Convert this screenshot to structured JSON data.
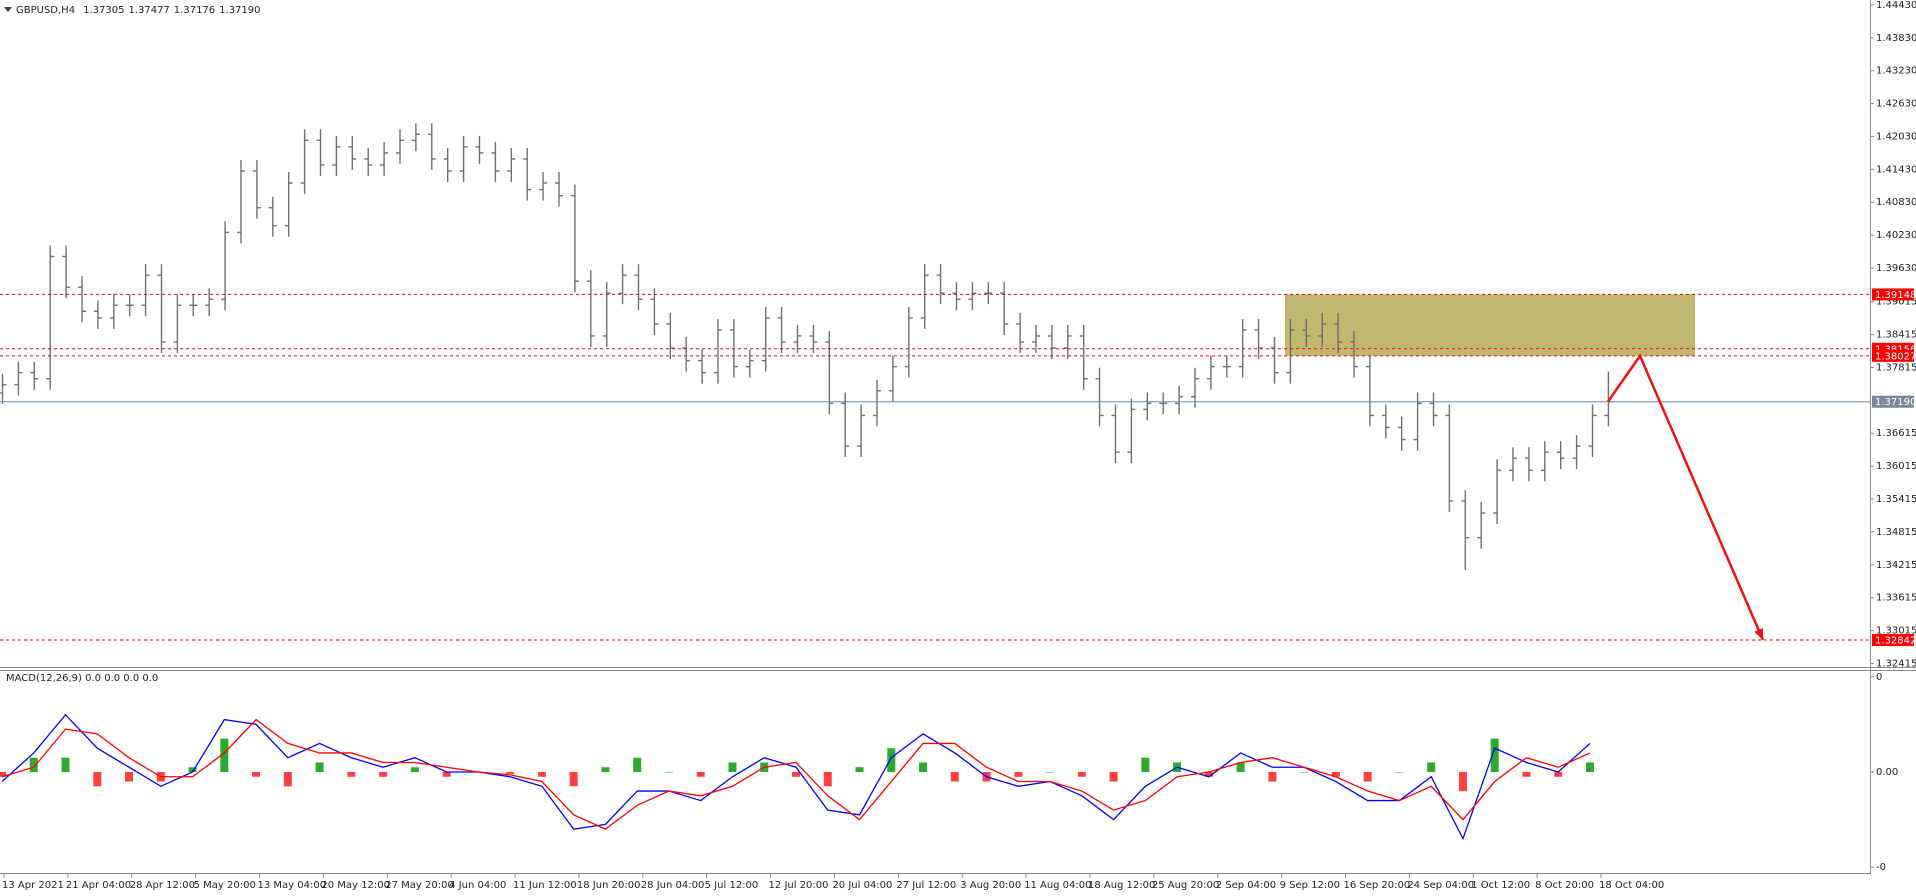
{
  "chart_data": {
    "type": "ohlc",
    "header": {
      "symbol": "GBPUSD,H4",
      "values": [
        "1.37305",
        "1.37477",
        "1.37176",
        "1.37190"
      ]
    },
    "x_labels": [
      "13 Apr 2021",
      "21 Apr 04:00",
      "28 Apr 12:00",
      "5 May 20:00",
      "13 May 04:00",
      "20 May 12:00",
      "27 May 20:00",
      "4 Jun 04:00",
      "11 Jun 12:00",
      "18 Jun 20:00",
      "28 Jun 04:00",
      "5 Jul 12:00",
      "12 Jul 20:00",
      "20 Jul 04:00",
      "27 Jul 12:00",
      "3 Aug 20:00",
      "11 Aug 04:00",
      "18 Aug 12:00",
      "25 Aug 20:00",
      "2 Sep 04:00",
      "9 Sep 12:00",
      "16 Sep 20:00",
      "24 Sep 04:00",
      "1 Oct 12:00",
      "8 Oct 20:00",
      "18 Oct 04:00"
    ],
    "open": [
      1.3735,
      1.375,
      1.3772,
      1.3761,
      1.3984,
      1.3928,
      1.3884,
      1.3872,
      1.3895,
      1.3895,
      1.395,
      1.3828,
      1.3895,
      1.3895,
      1.3906,
      1.4028,
      1.414,
      1.4073,
      1.404,
      1.4118,
      1.4196,
      1.4151,
      1.4184,
      1.4162,
      1.4151,
      1.4173,
      1.4196,
      1.4207,
      1.4162,
      1.414,
      1.4184,
      1.4173,
      1.414,
      1.4162,
      1.4106,
      1.4118,
      1.4095,
      1.3939,
      1.3839,
      1.3917,
      1.395,
      1.3906,
      1.3861,
      1.3817,
      1.3794,
      1.3772,
      1.385,
      1.3783,
      1.3794,
      1.3872,
      1.3828,
      1.3839,
      1.3828,
      1.3716,
      1.3638,
      1.3694,
      1.3739,
      1.3783,
      1.3872,
      1.395,
      1.3917,
      1.3906,
      1.3917,
      1.3917,
      1.3861,
      1.3828,
      1.3839,
      1.3817,
      1.3839,
      1.3761,
      1.3694,
      1.3627,
      1.3705,
      1.3716,
      1.3716,
      1.3728,
      1.3761,
      1.3783,
      1.3783,
      1.385,
      1.3817,
      1.3772,
      1.385,
      1.3839,
      1.3861,
      1.3828,
      1.3783,
      1.3694,
      1.3672,
      1.365,
      1.3716,
      1.3694,
      1.3538,
      1.3471,
      1.3516,
      1.3594,
      1.3616,
      1.3594,
      1.3627,
      1.3616,
      1.3638,
      1.3694
    ],
    "high": [
      1.377,
      1.3792,
      1.3792,
      1.4004,
      1.4004,
      1.3948,
      1.3904,
      1.3915,
      1.3915,
      1.397,
      1.397,
      1.3915,
      1.3915,
      1.3926,
      1.4048,
      1.416,
      1.416,
      1.4093,
      1.4138,
      1.4216,
      1.4216,
      1.4204,
      1.4204,
      1.4182,
      1.4193,
      1.4216,
      1.4227,
      1.4227,
      1.4182,
      1.4204,
      1.4204,
      1.4193,
      1.4182,
      1.4182,
      1.4138,
      1.4138,
      1.4115,
      1.3959,
      1.3937,
      1.397,
      1.397,
      1.3926,
      1.3881,
      1.3837,
      1.3814,
      1.387,
      1.387,
      1.3814,
      1.3892,
      1.3892,
      1.3859,
      1.3859,
      1.3848,
      1.3736,
      1.3714,
      1.3759,
      1.3803,
      1.3892,
      1.397,
      1.397,
      1.3937,
      1.3937,
      1.3937,
      1.3937,
      1.3881,
      1.3859,
      1.3859,
      1.3859,
      1.3859,
      1.3781,
      1.3714,
      1.3725,
      1.3736,
      1.3736,
      1.3748,
      1.3781,
      1.3803,
      1.3803,
      1.387,
      1.387,
      1.3837,
      1.387,
      1.387,
      1.3881,
      1.3881,
      1.3848,
      1.3803,
      1.3714,
      1.3692,
      1.3736,
      1.3736,
      1.3714,
      1.3558,
      1.3536,
      1.3614,
      1.3636,
      1.3636,
      1.3647,
      1.3647,
      1.3658,
      1.3714,
      1.3774
    ],
    "low": [
      1.3715,
      1.373,
      1.3741,
      1.3741,
      1.3908,
      1.3864,
      1.3852,
      1.3852,
      1.3875,
      1.3875,
      1.3808,
      1.3808,
      1.3875,
      1.3875,
      1.3886,
      1.4008,
      1.4053,
      1.402,
      1.402,
      1.4098,
      1.4131,
      1.4131,
      1.4142,
      1.4131,
      1.4131,
      1.4153,
      1.4176,
      1.4142,
      1.412,
      1.412,
      1.4153,
      1.412,
      1.412,
      1.4086,
      1.4086,
      1.4075,
      1.3919,
      1.3819,
      1.3819,
      1.3897,
      1.3886,
      1.3841,
      1.3797,
      1.3774,
      1.3752,
      1.3752,
      1.3763,
      1.3763,
      1.3774,
      1.3808,
      1.3808,
      1.3808,
      1.3696,
      1.3618,
      1.3618,
      1.3674,
      1.3719,
      1.3763,
      1.3852,
      1.3897,
      1.3886,
      1.3886,
      1.3897,
      1.3841,
      1.3808,
      1.3808,
      1.3797,
      1.3797,
      1.3741,
      1.3674,
      1.3607,
      1.3607,
      1.3685,
      1.3696,
      1.3696,
      1.3708,
      1.3741,
      1.3763,
      1.3763,
      1.3797,
      1.3752,
      1.3752,
      1.3819,
      1.3819,
      1.3808,
      1.3763,
      1.3674,
      1.3652,
      1.363,
      1.363,
      1.3674,
      1.3518,
      1.3412,
      1.3451,
      1.3496,
      1.3574,
      1.3574,
      1.3574,
      1.3596,
      1.3596,
      1.3618,
      1.3674
    ],
    "close": [
      1.375,
      1.3772,
      1.3761,
      1.3984,
      1.3928,
      1.3884,
      1.3872,
      1.3895,
      1.3895,
      1.395,
      1.3828,
      1.3895,
      1.3895,
      1.3906,
      1.4028,
      1.414,
      1.4073,
      1.404,
      1.4118,
      1.4196,
      1.4151,
      1.4184,
      1.4162,
      1.4151,
      1.4173,
      1.4196,
      1.4207,
      1.4162,
      1.414,
      1.4184,
      1.4173,
      1.414,
      1.4162,
      1.4106,
      1.4118,
      1.4095,
      1.3939,
      1.3839,
      1.3917,
      1.395,
      1.3906,
      1.3861,
      1.3817,
      1.3794,
      1.3772,
      1.385,
      1.3783,
      1.3794,
      1.3872,
      1.3828,
      1.3839,
      1.3828,
      1.3716,
      1.3638,
      1.3694,
      1.3739,
      1.3783,
      1.3872,
      1.395,
      1.3917,
      1.3906,
      1.3917,
      1.3917,
      1.3861,
      1.3828,
      1.3839,
      1.3817,
      1.3839,
      1.3761,
      1.3694,
      1.3627,
      1.3705,
      1.3716,
      1.3716,
      1.3728,
      1.3761,
      1.3783,
      1.3783,
      1.385,
      1.3817,
      1.3772,
      1.385,
      1.3839,
      1.3861,
      1.3828,
      1.3783,
      1.3694,
      1.3672,
      1.365,
      1.3716,
      1.3694,
      1.3538,
      1.3471,
      1.3516,
      1.3594,
      1.3616,
      1.3594,
      1.3627,
      1.3616,
      1.3638,
      1.3694,
      1.3719
    ],
    "color": "#6f6f6f",
    "ylim": [
      1.3235,
      1.4452
    ],
    "yticks": [
      {
        "value": 1.4443,
        "label": "1.44430"
      },
      {
        "value": 1.4383,
        "label": "1.43830"
      },
      {
        "value": 1.4323,
        "label": "1.43230"
      },
      {
        "value": 1.4263,
        "label": "1.42630"
      },
      {
        "value": 1.4203,
        "label": "1.42030"
      },
      {
        "value": 1.4143,
        "label": "1.41430"
      },
      {
        "value": 1.4083,
        "label": "1.40830"
      },
      {
        "value": 1.4023,
        "label": "1.40230"
      },
      {
        "value": 1.3963,
        "label": "1.39630"
      },
      1.39015,
      1.38415,
      1.37815,
      1.36615,
      1.36015,
      1.35415,
      1.34815,
      1.34215,
      1.33615,
      1.33015,
      1.32415
    ],
    "grid": false,
    "levels": [
      {
        "value": 1.39148,
        "label": "1.39148",
        "color": "#ff0000",
        "style": "dashed"
      },
      {
        "value": 1.38156,
        "label": "1.38156",
        "color": "#ff0000",
        "style": "dashed"
      },
      {
        "value": 1.38027,
        "label": "1.38027",
        "color": "#ff0000",
        "style": "dashed"
      },
      {
        "value": 1.32842,
        "label": "1.32842",
        "color": "#ff0000",
        "style": "dashed"
      },
      {
        "value": 1.3719,
        "label": "1.37190",
        "color": "#778899",
        "style": "solid"
      }
    ],
    "zone": {
      "high": 1.39148,
      "low": 1.38027,
      "color": "#bdb466"
    },
    "arrow_color": "#ee1111",
    "indicator": {
      "type": "macd",
      "title": "MACD(12,26,9) 0.0 0.0 0.0 0.0",
      "ylim": [
        -0.0105,
        0.0105
      ],
      "yticks": [
        {
          "value": 0.01,
          "label": "0"
        },
        {
          "value": 0,
          "label": "0.00"
        },
        {
          "value": -0.01,
          "label": "-0"
        }
      ],
      "macd": {
        "color": "#0000ff",
        "values": [
          -0.001,
          0.002,
          0.006,
          0.0025,
          0.0005,
          -0.0015,
          0,
          0.0055,
          0.005,
          0.0015,
          0.003,
          0.0015,
          0.0005,
          0.0015,
          0,
          0,
          -0.0005,
          -0.0015,
          -0.006,
          -0.0055,
          -0.002,
          -0.002,
          -0.003,
          -0.0005,
          0.0015,
          0.0005,
          -0.004,
          -0.0045,
          0.0015,
          0.004,
          0.002,
          -0.0005,
          -0.0015,
          -0.001,
          -0.0025,
          -0.005,
          -0.0015,
          0.0005,
          -0.0005,
          0.002,
          0.0005,
          0.0005,
          -0.001,
          -0.003,
          -0.003,
          -0.0005,
          -0.007,
          0.0025,
          0.001,
          0,
          0.003
        ]
      },
      "signal": {
        "color": "#ff0000",
        "values": [
          -0.0005,
          0.0005,
          0.0045,
          0.004,
          0.0015,
          -0.0005,
          -0.0005,
          0.002,
          0.0055,
          0.003,
          0.002,
          0.002,
          0.001,
          0.001,
          0.0005,
          0,
          -0.0003,
          -0.001,
          -0.0045,
          -0.006,
          -0.0035,
          -0.002,
          -0.0025,
          -0.0015,
          0.0005,
          0.001,
          -0.0025,
          -0.005,
          -0.001,
          0.003,
          0.003,
          0.0005,
          -0.001,
          -0.001,
          -0.002,
          -0.004,
          -0.003,
          -0.0005,
          0,
          0.001,
          0.0015,
          0.0005,
          -0.0005,
          -0.002,
          -0.003,
          -0.0015,
          -0.005,
          -0.001,
          0.0015,
          0.0005,
          0.002
        ]
      },
      "histogram": {
        "up_color": "#2ea82e",
        "down_color": "#ff4040",
        "values": [
          -0.0005,
          0.0015,
          0.0015,
          -0.0015,
          -0.001,
          -0.001,
          0.0005,
          0.0035,
          -0.0005,
          -0.0015,
          0.001,
          -0.0005,
          -0.0005,
          0.0005,
          -0.0005,
          0,
          -0.0002,
          -0.0005,
          -0.0015,
          0.0005,
          0.0015,
          0,
          -0.0005,
          0.001,
          0.001,
          -0.0005,
          -0.0015,
          0.0005,
          0.0025,
          0.001,
          -0.001,
          -0.001,
          -0.0005,
          0,
          -0.0005,
          -0.001,
          0.0015,
          0.001,
          -0.0005,
          0.001,
          -0.001,
          0,
          -0.0005,
          -0.001,
          0,
          0.001,
          -0.002,
          0.0035,
          -0.0005,
          -0.0005,
          0.001
        ]
      }
    }
  }
}
